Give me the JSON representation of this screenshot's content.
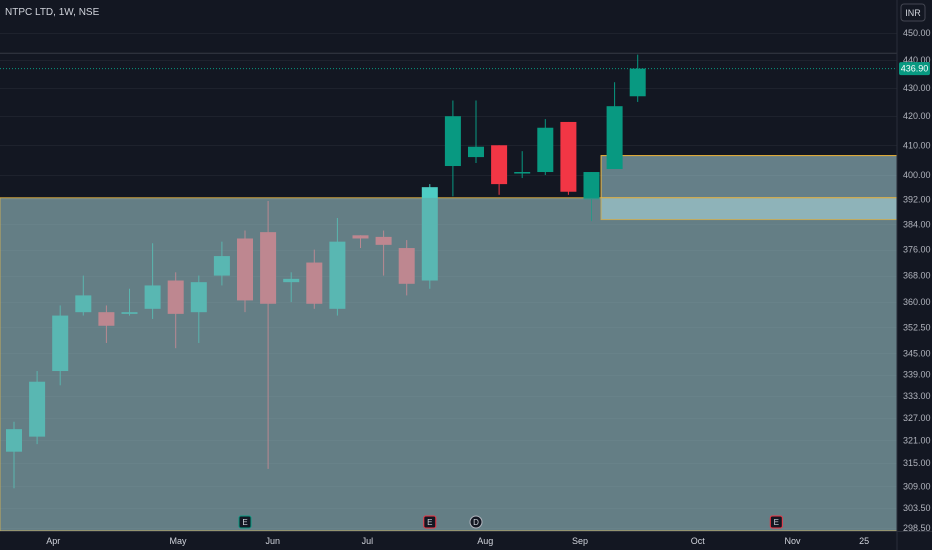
{
  "header": {
    "title": "NTPC LTD, 1W, NSE",
    "currency": "INR"
  },
  "price_badge": {
    "label": "436.90"
  },
  "events": [
    {
      "label": "E",
      "kind": "earnings",
      "date_index": 10
    },
    {
      "label": "E",
      "kind": "earnings",
      "date_index": 18
    },
    {
      "label": "D",
      "kind": "dividend",
      "date_index": 20
    },
    {
      "label": "E",
      "kind": "earnings",
      "date_index": 33
    }
  ],
  "colors": {
    "up": "#089981",
    "down": "#f23645",
    "zone_fill": "#a9d6dc",
    "zone_border": "#f0b73c",
    "background": "#131722",
    "axis_text": "#b2b5be"
  },
  "chart_data": {
    "type": "candlestick",
    "title": "NTPC LTD, 1W, NSE",
    "y_ticks": [
      "450.00",
      "440.00",
      "430.00",
      "420.00",
      "410.00",
      "400.00",
      "392.00",
      "384.00",
      "376.00",
      "368.00",
      "360.00",
      "352.50",
      "345.00",
      "339.00",
      "333.00",
      "327.00",
      "321.00",
      "315.00",
      "309.00",
      "303.50",
      "298.50"
    ],
    "x_ticks": [
      "Apr",
      "May",
      "Jun",
      "Jul",
      "Aug",
      "Sep",
      "Oct",
      "Nov",
      "25"
    ],
    "y_scale": "log",
    "ylim": [
      296.5,
      456
    ],
    "candles": [
      {
        "o": 318.0,
        "h": 326.0,
        "l": 308.5,
        "c": 324.0
      },
      {
        "o": 322.0,
        "h": 340.0,
        "l": 320.0,
        "c": 337.0
      },
      {
        "o": 340.0,
        "h": 359.0,
        "l": 336.0,
        "c": 356.0
      },
      {
        "o": 357.0,
        "h": 368.0,
        "l": 356.0,
        "c": 362.0
      },
      {
        "o": 357.0,
        "h": 359.0,
        "l": 348.0,
        "c": 353.0
      },
      {
        "o": 356.5,
        "h": 364.0,
        "l": 356.0,
        "c": 357.0
      },
      {
        "o": 358.0,
        "h": 378.0,
        "l": 355.0,
        "c": 365.0
      },
      {
        "o": 366.5,
        "h": 369.0,
        "l": 346.5,
        "c": 356.5
      },
      {
        "o": 357.0,
        "h": 368.0,
        "l": 348.0,
        "c": 366.0
      },
      {
        "o": 368.0,
        "h": 378.5,
        "l": 365.0,
        "c": 374.0
      },
      {
        "o": 379.5,
        "h": 382.0,
        "l": 357.0,
        "c": 360.5
      },
      {
        "o": 381.5,
        "h": 391.5,
        "l": 313.5,
        "c": 359.5
      },
      {
        "o": 366.0,
        "h": 369.0,
        "l": 360.0,
        "c": 367.0
      },
      {
        "o": 372.0,
        "h": 376.0,
        "l": 358.0,
        "c": 359.5
      },
      {
        "o": 358.0,
        "h": 386.0,
        "l": 356.0,
        "c": 378.5
      },
      {
        "o": 380.5,
        "h": 380.5,
        "l": 376.5,
        "c": 379.5
      },
      {
        "o": 380.0,
        "h": 382.0,
        "l": 368.0,
        "c": 377.5
      },
      {
        "o": 376.5,
        "h": 379.0,
        "l": 362.0,
        "c": 365.5
      },
      {
        "o": 366.5,
        "h": 397.0,
        "l": 364.0,
        "c": 396.0
      },
      {
        "o": 403.0,
        "h": 425.5,
        "l": 393.0,
        "c": 420.0
      },
      {
        "o": 406.0,
        "h": 425.5,
        "l": 404.0,
        "c": 409.5
      },
      {
        "o": 410.0,
        "h": 410.0,
        "l": 393.5,
        "c": 397.0
      },
      {
        "o": 401.0,
        "h": 408.0,
        "l": 399.0,
        "c": 401.0
      },
      {
        "o": 401.0,
        "h": 419.0,
        "l": 400.0,
        "c": 416.0
      },
      {
        "o": 418.0,
        "h": 418.0,
        "l": 393.5,
        "c": 394.5
      },
      {
        "o": 392.0,
        "h": 401.0,
        "l": 385.0,
        "c": 401.0
      },
      {
        "o": 402.0,
        "h": 432.0,
        "l": 402.0,
        "c": 423.5
      },
      {
        "o": 427.0,
        "h": 442.0,
        "l": 425.0,
        "c": 436.9
      }
    ],
    "zones": [
      {
        "top": 392.5,
        "bottom": 296.5,
        "from_index": 0,
        "to_index": 40,
        "label": ""
      },
      {
        "top": 406.5,
        "bottom": 392.5,
        "from_index": 25.5,
        "to_index": 40,
        "label": ""
      },
      {
        "top": 392.5,
        "bottom": 385.5,
        "from_index": 25.5,
        "to_index": 40,
        "label": "",
        "highlight": true
      }
    ],
    "last_price": 436.9,
    "horizontal_line": 442.5
  }
}
